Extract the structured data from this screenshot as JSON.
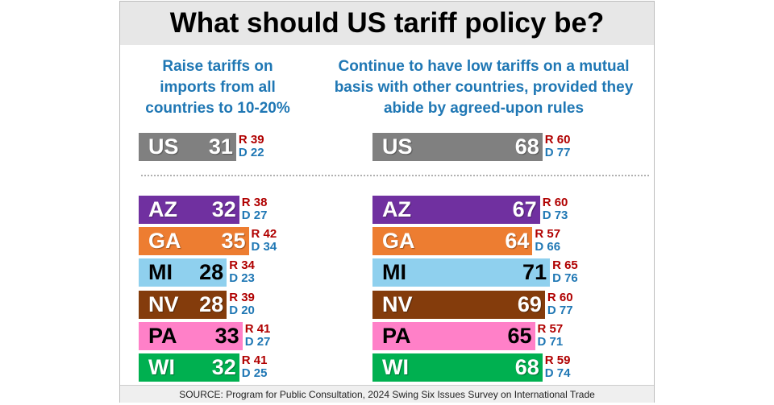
{
  "chart_data": {
    "type": "bar",
    "title": "What should US tariff policy be?",
    "categories": [
      "US",
      "AZ",
      "GA",
      "MI",
      "NV",
      "PA",
      "WI"
    ],
    "colors": {
      "US": "#808080",
      "AZ": "#7030a0",
      "GA": "#ed7d31",
      "MI": "#8fd0ee",
      "NV": "#843c0c",
      "PA": "#ff80c8",
      "WI": "#00b050"
    },
    "party_colors": {
      "R": "#b00000",
      "D": "#1f77b4"
    },
    "series": [
      {
        "name": "Raise tariffs on imports from all countries to 10-20%",
        "values": [
          31,
          32,
          35,
          28,
          28,
          33,
          32
        ],
        "R": [
          39,
          38,
          42,
          34,
          39,
          41,
          41
        ],
        "D": [
          22,
          27,
          34,
          23,
          20,
          27,
          25
        ]
      },
      {
        "name": "Continue to have low tariffs on a mutual basis with other countries, provided they abide by agreed-upon rules",
        "values": [
          68,
          67,
          64,
          71,
          69,
          65,
          68
        ],
        "R": [
          60,
          60,
          57,
          65,
          60,
          57,
          59
        ],
        "D": [
          77,
          73,
          66,
          76,
          77,
          71,
          74
        ]
      }
    ],
    "source": "SOURCE: Program for Public Consultation, 2024 Swing Six Issues Survey on International Trade"
  }
}
